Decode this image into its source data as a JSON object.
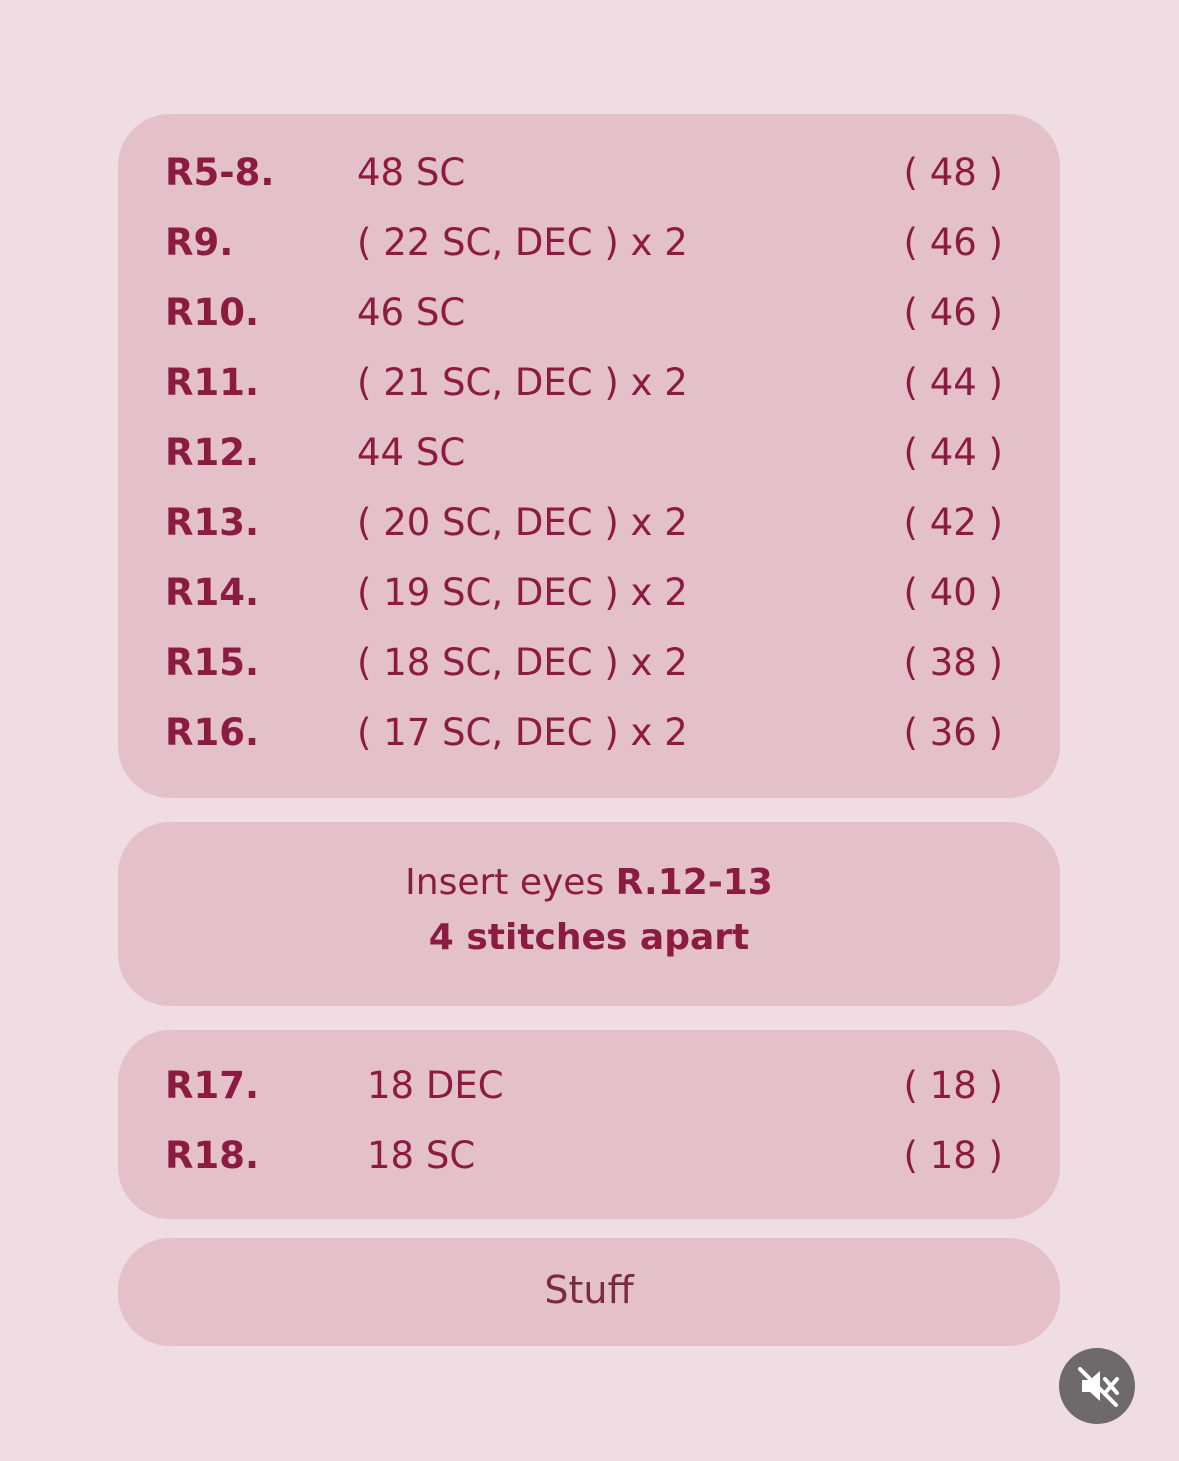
{
  "rounds_1": [
    {
      "round": "R5-8.",
      "stitches": "48 SC",
      "count": "( 48 )"
    },
    {
      "round": "R9.",
      "stitches": "( 22 SC, DEC ) x 2",
      "count": "( 46 )"
    },
    {
      "round": "R10.",
      "stitches": "46 SC",
      "count": "( 46 )"
    },
    {
      "round": "R11.",
      "stitches": "( 21 SC, DEC ) x 2",
      "count": "( 44 )"
    },
    {
      "round": "R12.",
      "stitches": "44 SC",
      "count": "( 44 )"
    },
    {
      "round": "R13.",
      "stitches": "( 20 SC, DEC ) x 2",
      "count": "( 42 )"
    },
    {
      "round": "R14.",
      "stitches": "( 19 SC, DEC ) x 2",
      "count": "( 40 )"
    },
    {
      "round": "R15.",
      "stitches": "( 18 SC, DEC ) x 2",
      "count": "( 38 )"
    },
    {
      "round": "R16.",
      "stitches": "( 17 SC, DEC ) x 2",
      "count": "( 36 )"
    }
  ],
  "note": {
    "text": "Insert eyes",
    "bold": "R.12-13",
    "line2": "4 stitches apart"
  },
  "rounds_2": [
    {
      "round": "R17.",
      "stitches": "18 DEC",
      "count": "( 18 )"
    },
    {
      "round": "R18.",
      "stitches": "18 SC",
      "count": "( 18 )"
    }
  ],
  "final": "Stuff"
}
